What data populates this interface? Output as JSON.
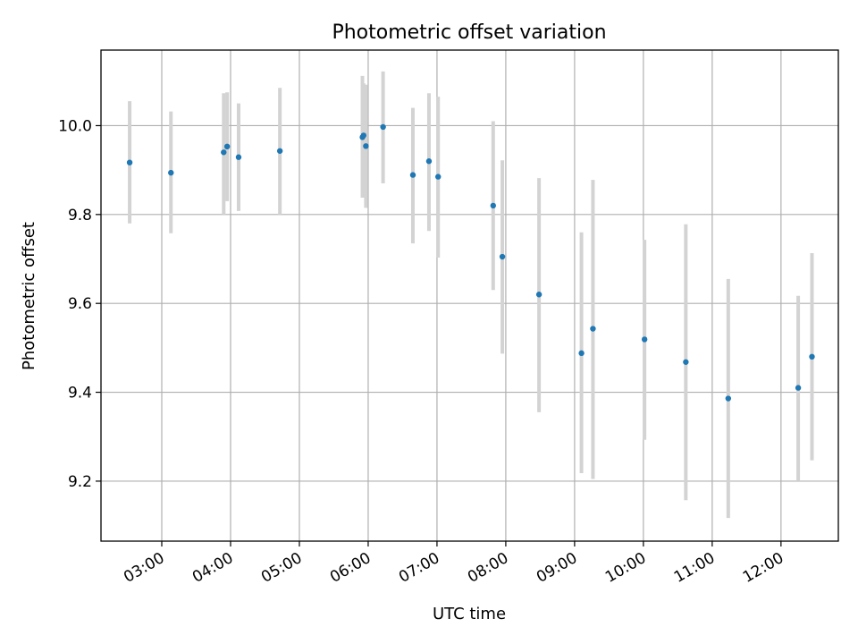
{
  "chart_data": {
    "type": "scatter",
    "title": "Photometric offset variation",
    "xlabel": "UTC time",
    "ylabel": "Photometric offset",
    "x_ticks": [
      "03:00",
      "04:00",
      "05:00",
      "06:00",
      "07:00",
      "08:00",
      "09:00",
      "10:00",
      "11:00",
      "12:00"
    ],
    "y_ticks": [
      "9.2",
      "9.4",
      "9.6",
      "9.8",
      "10.0"
    ],
    "xlim": [
      "02:07",
      "12:50"
    ],
    "ylim": [
      9.065,
      10.17
    ],
    "grid": true,
    "colors": {
      "point": "#1f77b4",
      "errorbar": "#d3d3d3"
    },
    "series": [
      {
        "points": [
          {
            "t": "02:32",
            "y": 9.917,
            "lo": 9.78,
            "hi": 10.055
          },
          {
            "t": "03:08",
            "y": 9.894,
            "lo": 9.758,
            "hi": 10.032
          },
          {
            "t": "03:54",
            "y": 9.94,
            "lo": 9.8,
            "hi": 10.073
          },
          {
            "t": "03:57",
            "y": 9.953,
            "lo": 9.83,
            "hi": 10.075
          },
          {
            "t": "04:07",
            "y": 9.929,
            "lo": 9.808,
            "hi": 10.05
          },
          {
            "t": "04:43",
            "y": 9.943,
            "lo": 9.8,
            "hi": 10.085
          },
          {
            "t": "05:55",
            "y": 9.974,
            "lo": 9.838,
            "hi": 10.112
          },
          {
            "t": "05:56",
            "y": 9.978,
            "lo": 9.855,
            "hi": 10.095
          },
          {
            "t": "05:58",
            "y": 9.954,
            "lo": 9.815,
            "hi": 10.092
          },
          {
            "t": "06:13",
            "y": 9.997,
            "lo": 9.87,
            "hi": 10.122
          },
          {
            "t": "06:39",
            "y": 9.889,
            "lo": 9.735,
            "hi": 10.04
          },
          {
            "t": "06:53",
            "y": 9.92,
            "lo": 9.763,
            "hi": 10.073
          },
          {
            "t": "07:01",
            "y": 9.885,
            "lo": 9.703,
            "hi": 10.065
          },
          {
            "t": "07:49",
            "y": 9.82,
            "lo": 9.63,
            "hi": 10.01
          },
          {
            "t": "07:57",
            "y": 9.705,
            "lo": 9.487,
            "hi": 9.922
          },
          {
            "t": "08:29",
            "y": 9.62,
            "lo": 9.355,
            "hi": 9.882
          },
          {
            "t": "09:06",
            "y": 9.488,
            "lo": 9.218,
            "hi": 9.76
          },
          {
            "t": "09:16",
            "y": 9.543,
            "lo": 9.205,
            "hi": 9.878
          },
          {
            "t": "10:01",
            "y": 9.519,
            "lo": 9.293,
            "hi": 9.743
          },
          {
            "t": "10:37",
            "y": 9.468,
            "lo": 9.157,
            "hi": 9.778
          },
          {
            "t": "11:14",
            "y": 9.386,
            "lo": 9.117,
            "hi": 9.655
          },
          {
            "t": "12:15",
            "y": 9.41,
            "lo": 9.2,
            "hi": 9.617
          },
          {
            "t": "12:27",
            "y": 9.48,
            "lo": 9.247,
            "hi": 9.713
          }
        ]
      }
    ]
  }
}
